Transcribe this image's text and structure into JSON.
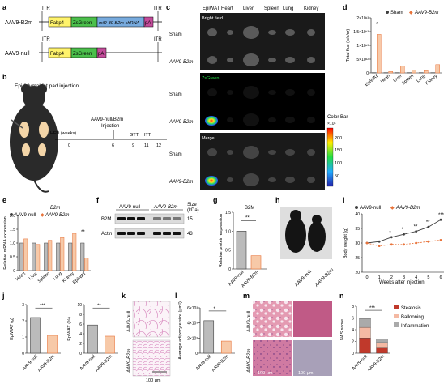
{
  "panel_letters": {
    "a": "a",
    "b": "b",
    "c": "c",
    "d": "d",
    "e": "e",
    "f": "f",
    "g": "g",
    "h": "h",
    "i": "i",
    "j": "j",
    "k": "k",
    "l": "l",
    "m": "m",
    "n": "n"
  },
  "colors": {
    "null": "#3f3f3f",
    "b2m": "#e8733a",
    "fabp4": "#fff36b",
    "zsgreen": "#4bbf4b",
    "shrna": "#77aadd",
    "pa": "#c34b9a",
    "steatosis": "#c0392b",
    "ballooning": "#f4b9a3",
    "inflammation": "#aaaaaa"
  },
  "panel_a": {
    "construct1_name": "AAV9-B2m",
    "construct2_name": "AAV9-null",
    "itr": "ITR",
    "fabp4": "Fabp4",
    "zsgreen": "ZsGreen",
    "shrna": "miR-30-B2m-shRNA",
    "pa": "pA"
  },
  "panel_b": {
    "title": "Epididymal fat pad injection",
    "injection_label": "AAV9-null/B2m",
    "injection_label2": "Injection",
    "gtt": "GTT",
    "itt": "ITT",
    "hfd": "HFD (weeks)",
    "ticks": [
      "0",
      "6",
      "9",
      "11",
      "12"
    ]
  },
  "panel_c": {
    "organs": [
      "EpiWAT",
      "Heart",
      "Liver",
      "Spleen",
      "Lung",
      "Kidney"
    ],
    "row_labels": [
      "Sham",
      "AAV9-B2m",
      "Sham",
      "AAV9-B2m",
      "Sham",
      "AAV9-B2m"
    ],
    "section_titles": [
      "Bright field",
      "ZsGreen",
      "Merge"
    ],
    "colorbar_title": "Color Bar",
    "colorbar_unit": "×10⁶",
    "colorbar_ticks": [
      "200",
      "150",
      "100",
      "50"
    ]
  },
  "legend": {
    "null": "AAV9-null",
    "b2m": "AAV9-B2m",
    "sham": "Sham"
  },
  "panel_e": {
    "title": "B2m",
    "ylabel": "Relative mRNA expression",
    "sig": "**"
  },
  "panel_f": {
    "header_null": "AAV9-null",
    "header_b2m": "AAV9-B2m",
    "size_label": "Size",
    "size_unit": "(kDa)",
    "rows": [
      "B2M",
      "Actin"
    ],
    "sizes": [
      "15",
      "43"
    ]
  },
  "panel_g": {
    "title": "B2M",
    "ylabel": "Relative protein expression",
    "sig": "**",
    "cats": [
      "AAV9-null",
      "AAV9-B2m"
    ]
  },
  "panel_h": {
    "cats": [
      "AAV9-null",
      "AAV9-B2m"
    ]
  },
  "panel_i": {
    "ylabel": "Body weight (g)",
    "xlabel": "Weeks after injection"
  },
  "panel_j": {
    "ylabel1": "EpiWAT (g)",
    "ylabel2": "EpiWAT (%)",
    "sig1": "***",
    "sig2": "**",
    "cats": [
      "AAV9-null",
      "AAV9-B2m"
    ]
  },
  "panel_k": {
    "rows": [
      "AAV9-null",
      "AAV9-B2m"
    ],
    "scale": "100 μm"
  },
  "panel_l": {
    "ylabel": "Average adipocyte size (μm²)",
    "sig": "*",
    "cats": [
      "AAV9-null",
      "AAV9-B2m"
    ]
  },
  "panel_m": {
    "rows": [
      "AAV9-null",
      "AAV9-B2m"
    ],
    "scale": "100 μm"
  },
  "panel_n": {
    "ylabel": "NAS score",
    "sig": "***",
    "cats": [
      "AAV9-null",
      "AAV9-B2m"
    ],
    "legend": [
      "Steatosis",
      "Ballooning",
      "Inflammation"
    ]
  },
  "chart_data": [
    {
      "id": "d",
      "type": "bar",
      "ylabel": "Total flux (p/s/sr)",
      "categories": [
        "EpiWAT",
        "Heart",
        "Liver",
        "Spleen",
        "Lung",
        "Kidney"
      ],
      "yticks_label": [
        "0",
        "5×10¹²",
        "1×10¹³",
        "1.5×10¹³",
        "2×10¹³"
      ],
      "yticks": [
        0,
        5,
        10,
        15,
        20
      ],
      "ylim": [
        0,
        20
      ],
      "sig": "*",
      "series": [
        {
          "name": "Sham",
          "values": [
            0.1,
            0.1,
            0.1,
            0.1,
            0.1,
            0.1
          ]
        },
        {
          "name": "AAV9-B2m",
          "values": [
            14,
            0.5,
            2.5,
            1.0,
            0.8,
            3.0
          ]
        }
      ]
    },
    {
      "id": "e",
      "type": "bar",
      "title": "B2m",
      "ylabel": "Relative mRNA expression",
      "categories": [
        "Heart",
        "Liver",
        "Spleen",
        "Lung",
        "Kidney",
        "EpiWAT"
      ],
      "yticks": [
        0,
        0.5,
        1.0,
        1.5,
        2.0
      ],
      "yticks_label": [
        "0",
        "0.5",
        "1.0",
        "1.5",
        "2.0"
      ],
      "ylim": [
        0,
        2.0
      ],
      "series": [
        {
          "name": "AAV9-null",
          "values": [
            1.0,
            1.0,
            1.0,
            1.0,
            1.0,
            1.0
          ]
        },
        {
          "name": "AAV9-B2m",
          "values": [
            1.15,
            0.95,
            1.1,
            1.2,
            1.35,
            0.45
          ]
        }
      ]
    },
    {
      "id": "g",
      "type": "bar",
      "title": "B2M",
      "ylabel": "Relative protein expression",
      "categories": [
        "AAV9-null",
        "AAV9-B2m"
      ],
      "yticks": [
        0,
        0.5,
        1.0,
        1.5
      ],
      "yticks_label": [
        "0",
        "0.5",
        "1.0",
        "1.5"
      ],
      "ylim": [
        0,
        1.5
      ],
      "values": [
        1.0,
        0.35
      ]
    },
    {
      "id": "i",
      "type": "line",
      "ylabel": "Body weight (g)",
      "xlabel": "Weeks after injection",
      "x": [
        0,
        1,
        2,
        3,
        4,
        5,
        6
      ],
      "yticks": [
        20,
        25,
        30,
        35,
        40
      ],
      "ylim": [
        20,
        40
      ],
      "sig": [
        "",
        "",
        "*",
        "*",
        "**",
        "**",
        "***"
      ],
      "series": [
        {
          "name": "AAV9-null",
          "values": [
            30,
            30.5,
            32,
            33,
            34,
            35.5,
            38
          ]
        },
        {
          "name": "AAV9-B2m",
          "values": [
            30,
            29,
            29.5,
            29.5,
            30,
            30.5,
            31
          ]
        }
      ]
    },
    {
      "id": "j1",
      "type": "bar",
      "ylabel": "EpiWAT (g)",
      "categories": [
        "AAV9-null",
        "AAV9-B2m"
      ],
      "yticks": [
        0,
        1,
        2,
        3
      ],
      "yticks_label": [
        "0",
        "1",
        "2",
        "3"
      ],
      "ylim": [
        0,
        3
      ],
      "values": [
        2.2,
        1.1
      ]
    },
    {
      "id": "j2",
      "type": "bar",
      "ylabel": "EpiWAT (%)",
      "categories": [
        "AAV9-null",
        "AAV9-B2m"
      ],
      "yticks": [
        0,
        2,
        4,
        6,
        8,
        10
      ],
      "yticks_label": [
        "0",
        "2",
        "4",
        "6",
        "8",
        "10"
      ],
      "ylim": [
        0,
        10
      ],
      "values": [
        5.8,
        3.5
      ]
    },
    {
      "id": "l",
      "type": "bar",
      "ylabel": "Average adipocyte size (μm²)",
      "categories": [
        "AAV9-null",
        "AAV9-B2m"
      ],
      "yticks": [
        0,
        2,
        4,
        6
      ],
      "yticks_label": [
        "0",
        "2×10³",
        "4×10³",
        "6×10³"
      ],
      "ylim": [
        0,
        6
      ],
      "values": [
        4.3,
        1.6
      ]
    },
    {
      "id": "n",
      "type": "bar",
      "ylabel": "NAS score",
      "categories": [
        "AAV9-null",
        "AAV9-B2m"
      ],
      "yticks": [
        0,
        2,
        4,
        6,
        8
      ],
      "yticks_label": [
        "0",
        "2",
        "4",
        "6",
        "8"
      ],
      "ylim": [
        0,
        8
      ],
      "series": [
        {
          "name": "Steatosis",
          "values": [
            2.6,
            1.0
          ]
        },
        {
          "name": "Ballooning",
          "values": [
            1.8,
            0.8
          ]
        },
        {
          "name": "Inflammation",
          "values": [
            1.5,
            0.6
          ]
        }
      ]
    }
  ]
}
